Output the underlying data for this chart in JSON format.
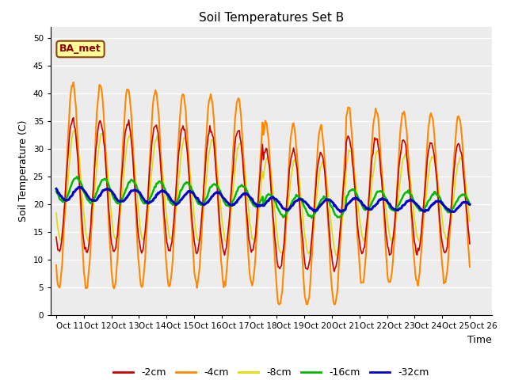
{
  "title": "Soil Temperatures Set B",
  "xlabel": "Time",
  "ylabel": "Soil Temperature (C)",
  "ylim": [
    0,
    52
  ],
  "yticks": [
    0,
    5,
    10,
    15,
    20,
    25,
    30,
    35,
    40,
    45,
    50
  ],
  "x_tick_labels": [
    "Oct 11",
    "Oct 12",
    "Oct 13",
    "Oct 14",
    "Oct 15",
    "Oct 16",
    "Oct 17",
    "Oct 18",
    "Oct 19",
    "Oct 20",
    "Oct 21",
    "Oct 22",
    "Oct 23",
    "Oct 24",
    "Oct 25",
    "Oct 26",
    ""
  ],
  "colors": {
    "-2cm": "#cc0000",
    "-4cm": "#ff8800",
    "-8cm": "#dddd00",
    "-16cm": "#00bb00",
    "-32cm": "#0000cc"
  },
  "linewidths": {
    "-2cm": 1.2,
    "-4cm": 1.5,
    "-8cm": 1.2,
    "-16cm": 1.8,
    "-32cm": 2.2
  },
  "annotation_text": "BA_met",
  "bg_color": "#ececec",
  "n_points": 480
}
